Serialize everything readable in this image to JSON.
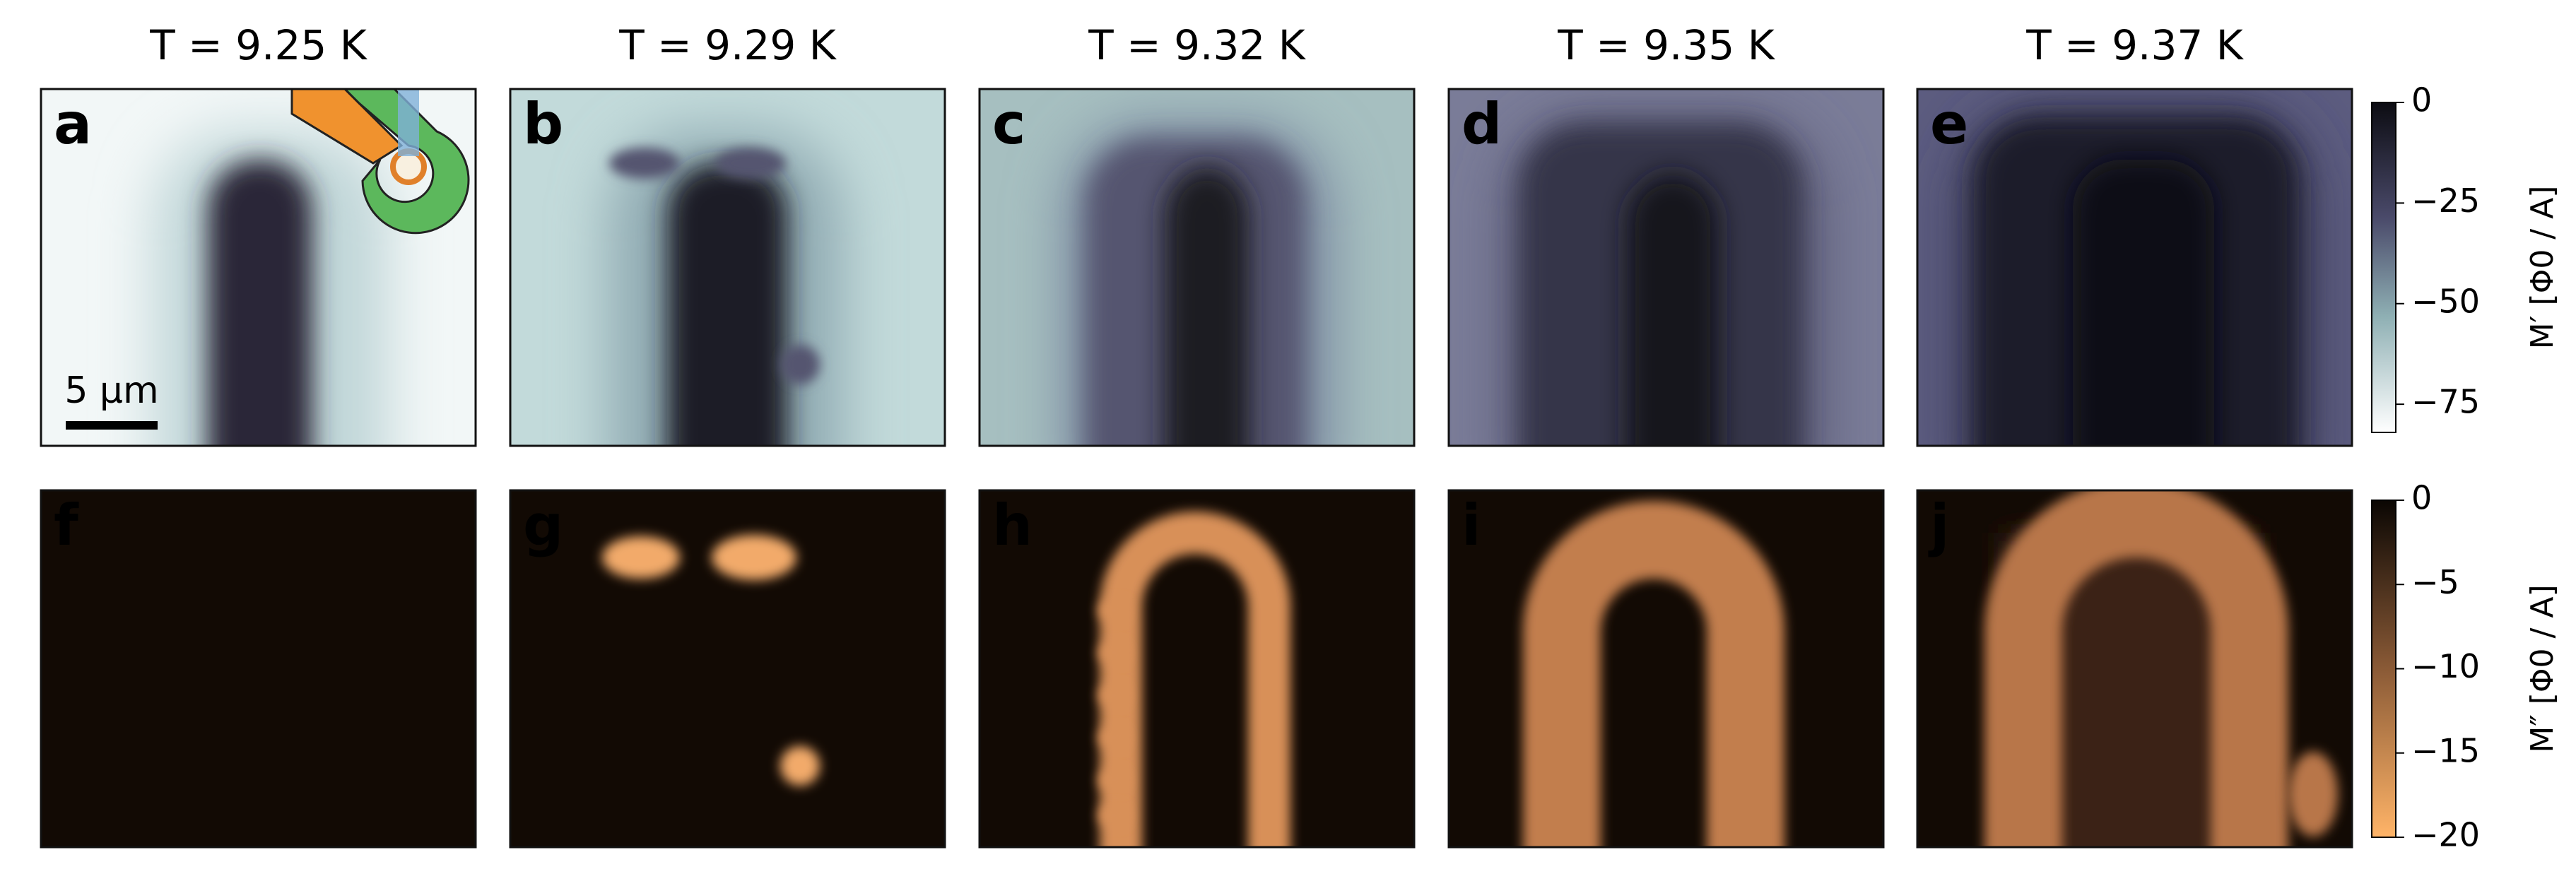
{
  "top_panels": [
    {
      "label": "a",
      "title": "T = 9.25 K"
    },
    {
      "label": "b",
      "title": "T = 9.29 K"
    },
    {
      "label": "c",
      "title": "T = 9.32 K"
    },
    {
      "label": "d",
      "title": "T = 9.35 K"
    },
    {
      "label": "e",
      "title": "T = 9.37 K"
    }
  ],
  "bottom_panels": [
    {
      "label": "f"
    },
    {
      "label": "g"
    },
    {
      "label": "h"
    },
    {
      "label": "i"
    },
    {
      "label": "j"
    }
  ],
  "scale_bar": "5 μm",
  "colorbars": [
    {
      "label": "M′ [Φ0 / A]",
      "lim": [
        -82,
        0
      ],
      "ticks": [
        0,
        {
          "value": -25,
          "label": "−25"
        },
        {
          "value": -50,
          "label": "−50"
        },
        {
          "value": -75,
          "label": "−75"
        }
      ]
    },
    {
      "label": "M″ [Φ0 / A]",
      "lim": [
        -20,
        0
      ],
      "ticks": [
        0,
        {
          "value": -5,
          "label": "−5"
        },
        {
          "value": -10,
          "label": "−10"
        },
        {
          "value": -15,
          "label": "−15"
        },
        {
          "value": -20,
          "label": "−20"
        }
      ]
    }
  ]
}
